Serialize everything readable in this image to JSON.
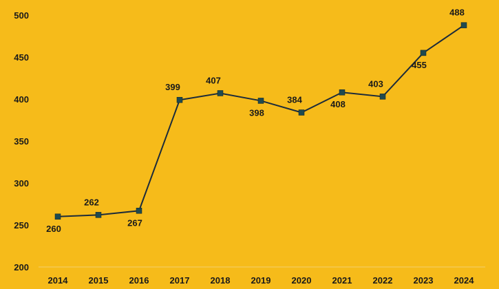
{
  "chart_data": {
    "type": "line",
    "title": "",
    "xlabel": "",
    "ylabel": "",
    "categories": [
      "2014",
      "2015",
      "2016",
      "2017",
      "2018",
      "2019",
      "2020",
      "2021",
      "2022",
      "2023",
      "2024"
    ],
    "series": [
      {
        "values": [
          260,
          262,
          267,
          399,
          407,
          398,
          384,
          408,
          403,
          455,
          488
        ],
        "label_positions": [
          "below",
          "above",
          "below",
          "above",
          "above",
          "below",
          "above",
          "below",
          "above",
          "below",
          "above"
        ]
      }
    ],
    "yticks": [
      200,
      250,
      300,
      350,
      400,
      450,
      500
    ],
    "ylim": [
      200,
      500
    ],
    "grid": false,
    "colors": {
      "background": "#F6BB1A",
      "line": "#1c2b3a",
      "marker": "#1f4a4f",
      "baseline": "#f3cf6e"
    }
  }
}
